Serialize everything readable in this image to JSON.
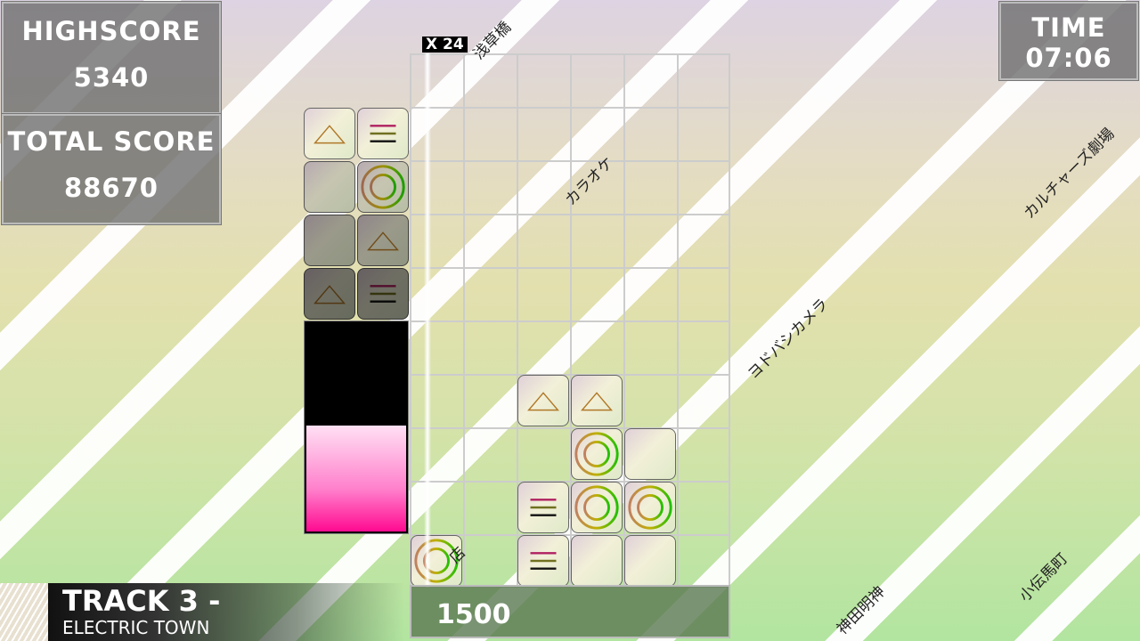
{
  "hud": {
    "highscore_label": "HIGHSCORE",
    "highscore": "5340",
    "total_label": "TOTAL SCORE",
    "total": "88670",
    "time_label": "TIME",
    "time": "07:06",
    "combo": "X 24",
    "current_score": "1500"
  },
  "track": {
    "title": "TRACK 3 -",
    "name": "ELECTRIC TOWN"
  },
  "map_labels": [
    "浅草橋",
    "カラオケ",
    "カルチャーズ劇場",
    "ヨドバシカメラ",
    "神田明神",
    "小伝馬町",
    "店"
  ],
  "queue": [
    [
      "triangle",
      "hlines"
    ],
    [
      "vlines",
      "circle"
    ],
    [
      "vlines",
      "triangle"
    ],
    [
      "triangle",
      "hlines"
    ]
  ],
  "board_tiles": [
    {
      "row": 7,
      "col": 2,
      "type": "triangle"
    },
    {
      "row": 7,
      "col": 3,
      "type": "triangle"
    },
    {
      "row": 8,
      "col": 3,
      "type": "circle"
    },
    {
      "row": 8,
      "col": 4,
      "type": "vlines"
    },
    {
      "row": 9,
      "col": 2,
      "type": "hlines"
    },
    {
      "row": 9,
      "col": 3,
      "type": "circle"
    },
    {
      "row": 9,
      "col": 4,
      "type": "circle"
    },
    {
      "row": 10,
      "col": 0,
      "type": "circle"
    },
    {
      "row": 10,
      "col": 2,
      "type": "hlines"
    },
    {
      "row": 10,
      "col": 3,
      "type": "vlines"
    },
    {
      "row": 10,
      "col": 4,
      "type": "vlines"
    }
  ],
  "gauge_level": 0.5,
  "colors": {
    "gauge": "#ff1493",
    "accent": "#000000"
  }
}
